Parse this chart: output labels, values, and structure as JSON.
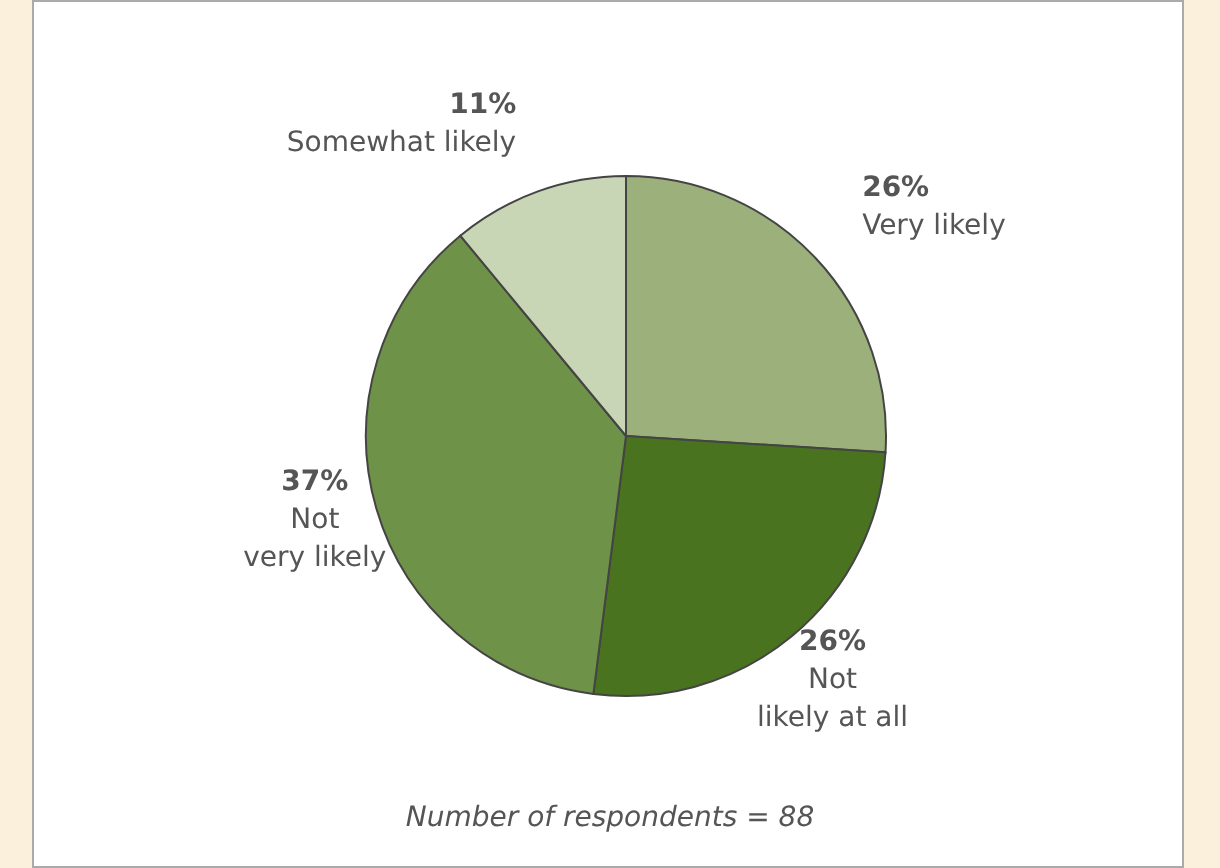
{
  "chart_data": {
    "type": "pie",
    "categories": [
      "Very likely",
      "Not likely at all",
      "Not very likely",
      "Somewhat likely"
    ],
    "values": [
      26,
      26,
      37,
      11
    ],
    "value_labels": [
      "26%",
      "26%",
      "37%",
      "11%"
    ],
    "colors": [
      "#9bb07a",
      "#4a7320",
      "#6f9249",
      "#c9d6b6"
    ],
    "annotations": [
      "Number of respondents = 88"
    ]
  }
}
